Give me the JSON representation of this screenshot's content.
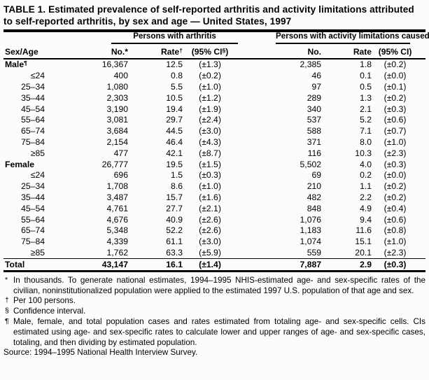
{
  "title": "TABLE 1. Estimated prevalence of self-reported arthritis and activity limitations attributed to self-reported arthritis, by sex and age — United States, 1997",
  "table": {
    "row_header": "Sex/Age",
    "groups": [
      {
        "label": "Persons with arthritis",
        "columns": [
          "No.*",
          "Rate†",
          "(95% CI§)"
        ]
      },
      {
        "label": "Persons with activity limitations caused by arthritis",
        "columns": [
          "No.",
          "Rate",
          "(95% CI)"
        ]
      }
    ],
    "rows": [
      {
        "label": "Male¶",
        "type": "group",
        "values": [
          "16,367",
          "12.5",
          "(±1.3)",
          "2,385",
          "1.8",
          "(±0.2)"
        ]
      },
      {
        "label": "≤24",
        "type": "age",
        "values": [
          "400",
          "0.8",
          "(±0.2)",
          "46",
          "0.1",
          "(±0.0)"
        ]
      },
      {
        "label": "25–34",
        "type": "age",
        "values": [
          "1,080",
          "5.5",
          "(±1.0)",
          "97",
          "0.5",
          "(±0.1)"
        ]
      },
      {
        "label": "35–44",
        "type": "age",
        "values": [
          "2,303",
          "10.5",
          "(±1.2)",
          "289",
          "1.3",
          "(±0.2)"
        ]
      },
      {
        "label": "45–54",
        "type": "age",
        "values": [
          "3,190",
          "19.4",
          "(±1.9)",
          "340",
          "2.1",
          "(±0.3)"
        ]
      },
      {
        "label": "55–64",
        "type": "age",
        "values": [
          "3,081",
          "29.7",
          "(±2.4)",
          "537",
          "5.2",
          "(±0.6)"
        ]
      },
      {
        "label": "65–74",
        "type": "age",
        "values": [
          "3,684",
          "44.5",
          "(±3.0)",
          "588",
          "7.1",
          "(±0.7)"
        ]
      },
      {
        "label": "75–84",
        "type": "age",
        "values": [
          "2,154",
          "46.4",
          "(±4.3)",
          "371",
          "8.0",
          "(±1.0)"
        ]
      },
      {
        "label": "≥85",
        "type": "age",
        "values": [
          "477",
          "42.1",
          "(±8.7)",
          "116",
          "10.3",
          "(±2.3)"
        ]
      },
      {
        "label": "Female",
        "type": "group",
        "values": [
          "26,777",
          "19.5",
          "(±1.5)",
          "5,502",
          "4.0",
          "(±0.3)"
        ]
      },
      {
        "label": "≤24",
        "type": "age",
        "values": [
          "696",
          "1.5",
          "(±0.3)",
          "69",
          "0.2",
          "(±0.0)"
        ]
      },
      {
        "label": "25–34",
        "type": "age",
        "values": [
          "1,708",
          "8.6",
          "(±1.0)",
          "210",
          "1.1",
          "(±0.2)"
        ]
      },
      {
        "label": "35–44",
        "type": "age",
        "values": [
          "3,487",
          "15.7",
          "(±1.6)",
          "482",
          "2.2",
          "(±0.2)"
        ]
      },
      {
        "label": "45–54",
        "type": "age",
        "values": [
          "4,761",
          "27.7",
          "(±2.1)",
          "848",
          "4.9",
          "(±0.4)"
        ]
      },
      {
        "label": "55–64",
        "type": "age",
        "values": [
          "4,676",
          "40.9",
          "(±2.6)",
          "1,076",
          "9.4",
          "(±0.6)"
        ]
      },
      {
        "label": "65–74",
        "type": "age",
        "values": [
          "5,348",
          "52.2",
          "(±2.6)",
          "1,183",
          "11.6",
          "(±0.8)"
        ]
      },
      {
        "label": "75–84",
        "type": "age",
        "values": [
          "4,339",
          "61.1",
          "(±3.0)",
          "1,074",
          "15.1",
          "(±1.0)"
        ]
      },
      {
        "label": "≥85",
        "type": "age",
        "values": [
          "1,762",
          "63.3",
          "(±5.9)",
          "559",
          "20.1",
          "(±2.3)"
        ]
      },
      {
        "label": "Total",
        "type": "total",
        "values": [
          "43,147",
          "16.1",
          "(±1.4)",
          "7,887",
          "2.9",
          "(±0.3)"
        ]
      }
    ]
  },
  "footnotes": [
    {
      "symbol": "*",
      "text": "In thousands. To generate national estimates, 1994–1995 NHIS-estimated age- and sex-specific rates of the civilian, noninstitutionalized population were applied to the estimated 1997 U.S. population of that age and sex."
    },
    {
      "symbol": "†",
      "text": "Per 100 persons."
    },
    {
      "symbol": "§",
      "text": "Confidence interval."
    },
    {
      "symbol": "¶",
      "text": "Male, female, and total population cases and rates estimated from totaling age- and sex-specific cells. CIs estimated using age- and sex-specific rates to calculate lower and upper ranges of age- and sex-specific cases, totaling, and then dividing by estimated population."
    }
  ],
  "source": "Source: 1994–1995 National Health Interview Survey.",
  "colors": {
    "text": "#000000",
    "background": "#fcfcfc",
    "rule": "#000000"
  }
}
